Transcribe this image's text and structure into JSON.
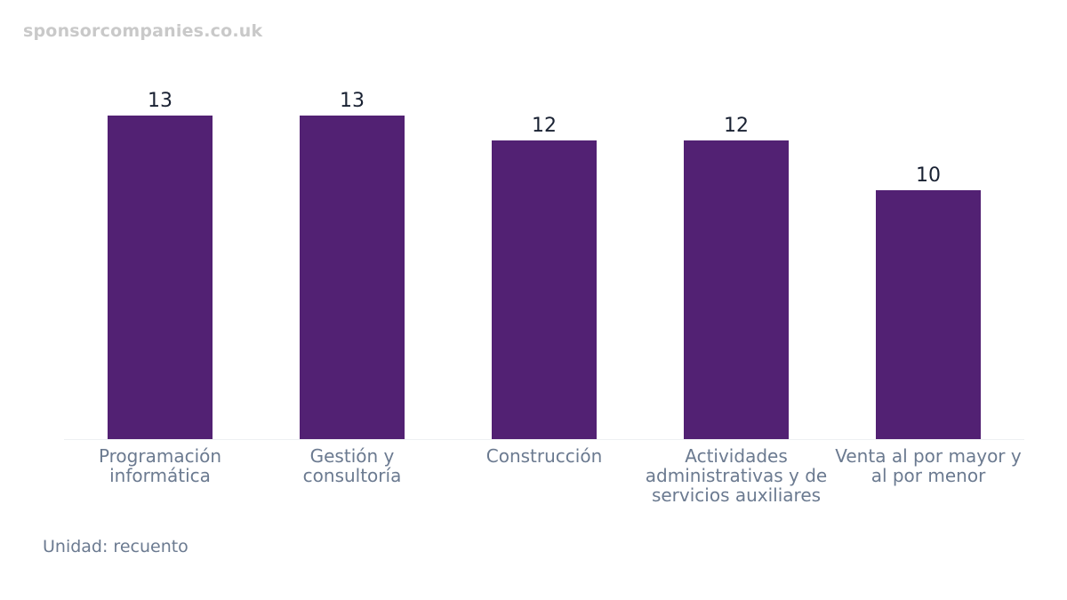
{
  "watermark": "sponsorcompanies.co.uk",
  "unit_note": "Unidad: recuento",
  "colors": {
    "bar": "#522173",
    "value_label": "#1a2233",
    "category_label": "#6b7a90",
    "baseline": "#eef0f3",
    "watermark": "#c9c9c9"
  },
  "chart_data": {
    "type": "bar",
    "categories": [
      "Programación informática",
      "Gestión y consultoría",
      "Construcción",
      "Actividades administrativas y de servicios auxiliares",
      "Venta al por mayor y al por menor"
    ],
    "values": [
      13,
      13,
      12,
      12,
      10
    ],
    "title": "",
    "xlabel": "",
    "ylabel": "",
    "ylim": [
      0,
      13
    ],
    "grid": false,
    "legend": "none"
  }
}
